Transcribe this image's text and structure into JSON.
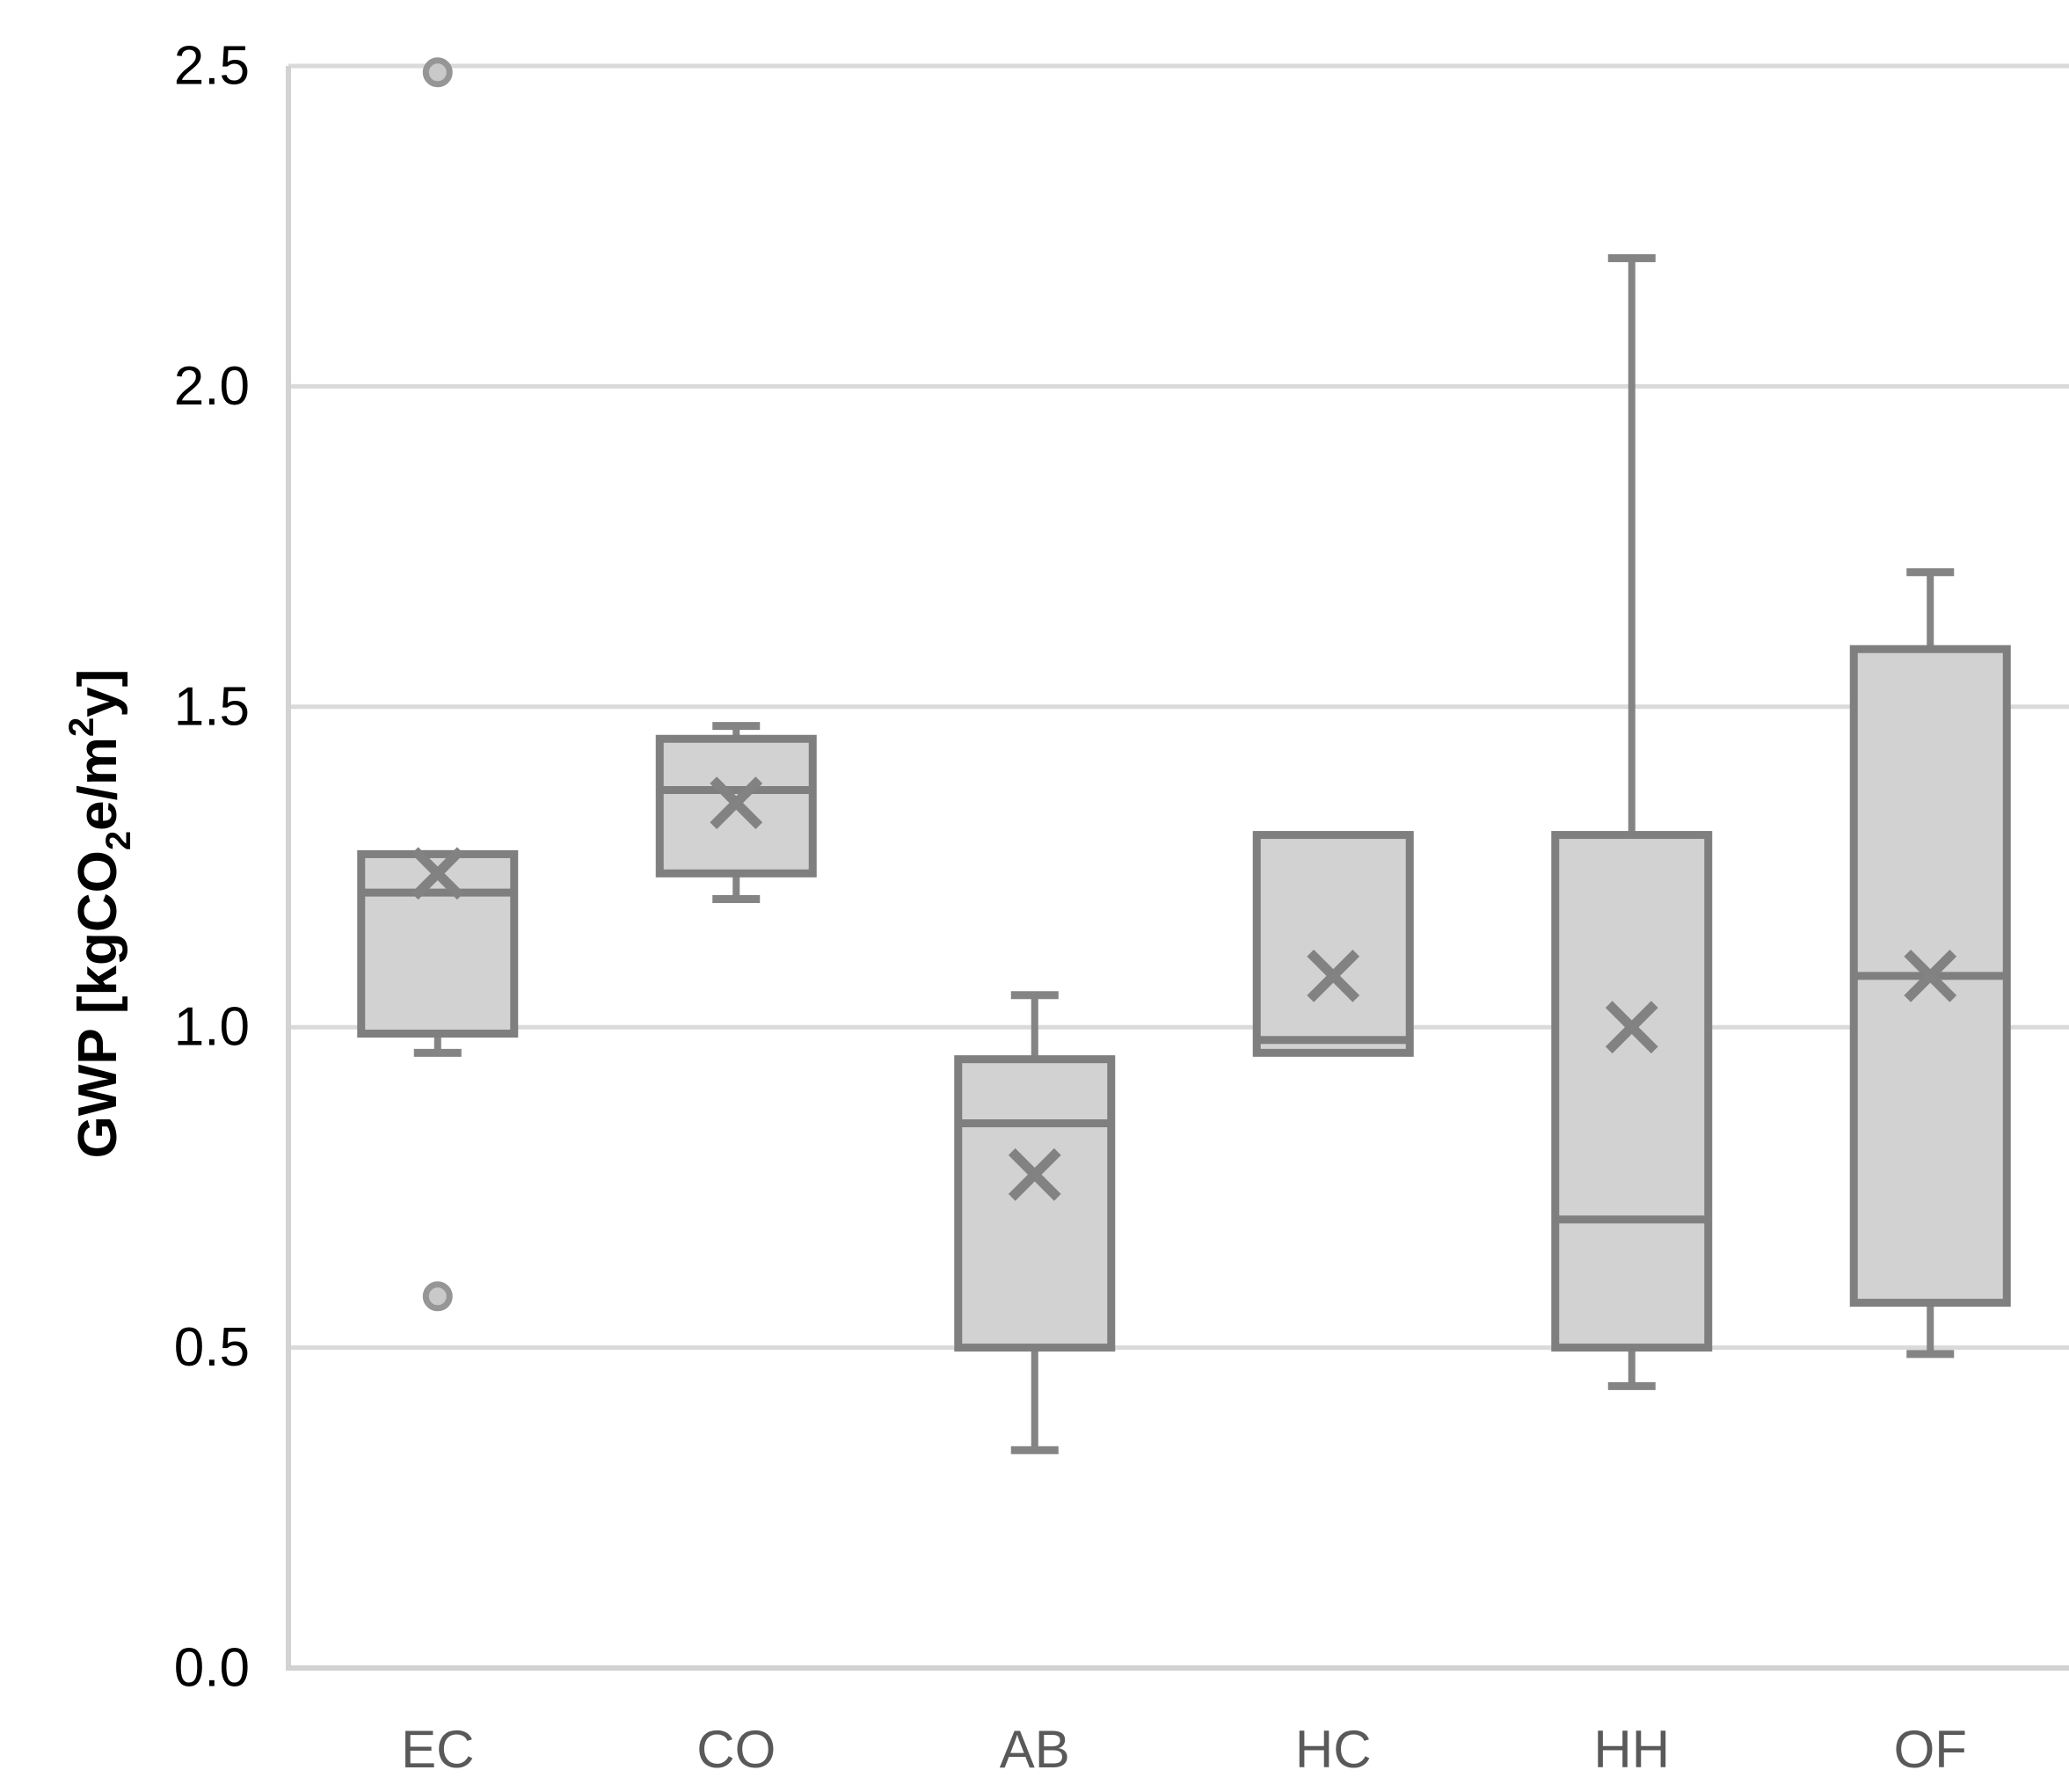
{
  "chart_data": {
    "type": "boxplot",
    "title": "",
    "ylabel_parts": [
      {
        "t": "GWP [kgCO",
        "pos": "normal"
      },
      {
        "t": "2",
        "pos": "sub"
      },
      {
        "t": "e/m",
        "pos": "normal"
      },
      {
        "t": "2",
        "pos": "sup"
      },
      {
        "t": "y]",
        "pos": "normal"
      }
    ],
    "categories": [
      "EC",
      "CO",
      "AB",
      "HC",
      "HH",
      "OF"
    ],
    "ylim": [
      0.0,
      2.5
    ],
    "y_ticks": [
      0.0,
      0.5,
      1.0,
      1.5,
      2.0,
      2.5
    ],
    "y_tick_labels": [
      "0.0",
      "0.5",
      "1.0",
      "1.5",
      "2.0",
      "2.5"
    ],
    "grid": true,
    "legend": "none",
    "series": [
      {
        "category": "EC",
        "whisker_low": 0.96,
        "q1": 0.99,
        "median": 1.21,
        "mean": 1.24,
        "q3": 1.27,
        "whisker_high": 1.27,
        "outliers": [
          2.49,
          0.58
        ]
      },
      {
        "category": "CO",
        "whisker_low": 1.2,
        "q1": 1.24,
        "median": 1.37,
        "mean": 1.35,
        "q3": 1.45,
        "whisker_high": 1.47,
        "outliers": []
      },
      {
        "category": "AB",
        "whisker_low": 0.34,
        "q1": 0.5,
        "median": 0.85,
        "mean": 0.77,
        "q3": 0.95,
        "whisker_high": 1.05,
        "outliers": []
      },
      {
        "category": "HC",
        "whisker_low": null,
        "q1": 0.96,
        "median": 0.98,
        "mean": 1.08,
        "q3": 1.3,
        "whisker_high": null,
        "outliers": []
      },
      {
        "category": "HH",
        "whisker_low": 0.44,
        "q1": 0.5,
        "median": 0.7,
        "mean": 1.0,
        "q3": 1.3,
        "whisker_high": 2.2,
        "outliers": []
      },
      {
        "category": "OF",
        "whisker_low": 0.49,
        "q1": 0.57,
        "median": 1.08,
        "mean": 1.08,
        "q3": 1.59,
        "whisker_high": 1.71,
        "outliers": []
      }
    ],
    "colors": {
      "background": "#ffffff",
      "box_fill": "#d2d2d2",
      "box_stroke": "#7f7f7f",
      "median_stroke": "#7f7f7f",
      "whisker_stroke": "#848484",
      "mean_stroke": "#828282",
      "grid_color": "#dadada",
      "axis_color": "#d2d2d2",
      "y_tick_color": "#000000",
      "x_label_color": "#595959",
      "y_title_color": "#000000",
      "outlier_stroke": "#969696",
      "outlier_fill": "#c9c9c9"
    }
  }
}
